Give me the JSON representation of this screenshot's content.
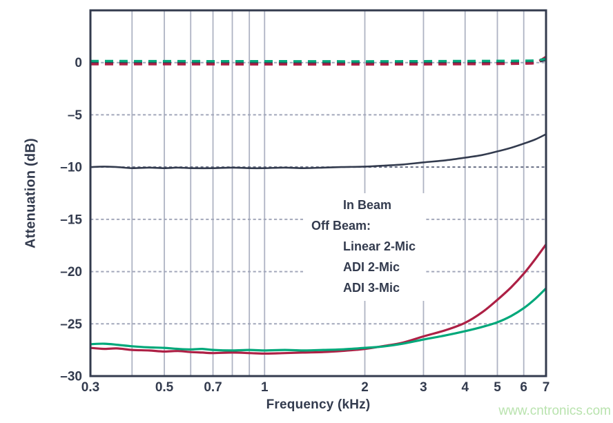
{
  "page": {
    "background": "#ffffff",
    "watermark": "www.cntronics.com",
    "watermark_color": "#b9e3ae"
  },
  "axes": {
    "x_label": "Frequency (kHz)",
    "y_label": "Attenuation (dB)"
  },
  "legend": {
    "rows": [
      {
        "label": "In Beam",
        "swatch": "dashed-navy"
      },
      {
        "label": "Off Beam:",
        "swatch": "none"
      },
      {
        "label": "Linear 2-Mic",
        "swatch": "solid-navy"
      },
      {
        "label": "ADI 2-Mic",
        "swatch": "solid-red"
      },
      {
        "label": "ADI 3-Mic",
        "swatch": "solid-green"
      }
    ]
  },
  "chart_data": {
    "type": "line",
    "title": "",
    "xlabel": "Frequency (kHz)",
    "ylabel": "Attenuation (dB)",
    "x_scale": "log",
    "xlim": [
      0.3,
      7
    ],
    "ylim": [
      -30,
      5
    ],
    "grid": true,
    "legend_position": "center-right-lower",
    "colors": {
      "navy": "#333b4e",
      "red": "#ad2045",
      "green": "#00a87a",
      "gridline": "#aeb3c3",
      "h_dash": "#a2a7ba",
      "ref_dotted": "#666d83",
      "frame": "#333b4e",
      "tick_text": "#333b4e"
    },
    "x_ticks": [
      {
        "value": 0.3,
        "label": "0.3"
      },
      {
        "value": 0.5,
        "label": "0.5"
      },
      {
        "value": 0.7,
        "label": "0.7"
      },
      {
        "value": 1,
        "label": "1"
      },
      {
        "value": 2,
        "label": "2"
      },
      {
        "value": 3,
        "label": "3"
      },
      {
        "value": 4,
        "label": "4"
      },
      {
        "value": 5,
        "label": "5"
      },
      {
        "value": 6,
        "label": "6"
      },
      {
        "value": 7,
        "label": "7"
      }
    ],
    "x_gridlines": [
      0.4,
      0.5,
      0.6,
      0.7,
      0.8,
      0.9,
      1,
      2,
      3,
      4,
      5,
      6
    ],
    "y_ticks": [
      {
        "value": 0,
        "label": "0"
      },
      {
        "value": -5,
        "label": "–5"
      },
      {
        "value": -10,
        "label": "–10"
      },
      {
        "value": -15,
        "label": "–15"
      },
      {
        "value": -20,
        "label": "–20"
      },
      {
        "value": -25,
        "label": "–25"
      },
      {
        "value": -30,
        "label": "–30"
      }
    ],
    "y_gridlines_dashed": [
      0,
      -5,
      -15,
      -20,
      -25
    ],
    "y_reference_dotted": -10,
    "series": [
      {
        "name": "In Beam Linear 2-Mic",
        "style": "dashed",
        "color": "#333b4e",
        "width": 3.4,
        "points": [
          [
            0.3,
            -0.02
          ],
          [
            1,
            -0.02
          ],
          [
            3,
            -0.02
          ],
          [
            5,
            -0.02
          ],
          [
            6,
            0.0
          ],
          [
            6.5,
            0.05
          ],
          [
            7,
            0.25
          ]
        ]
      },
      {
        "name": "In Beam ADI 2-Mic",
        "style": "dashed",
        "color": "#ad2045",
        "width": 3.4,
        "points": [
          [
            0.3,
            -0.15
          ],
          [
            1,
            -0.17
          ],
          [
            2,
            -0.18
          ],
          [
            4,
            -0.15
          ],
          [
            6,
            -0.1
          ],
          [
            6.5,
            0.0
          ],
          [
            7,
            0.55
          ]
        ]
      },
      {
        "name": "In Beam ADI 3-Mic",
        "style": "dashed",
        "color": "#00a87a",
        "width": 3.4,
        "points": [
          [
            0.3,
            0.15
          ],
          [
            1,
            0.13
          ],
          [
            2,
            0.12
          ],
          [
            4,
            0.15
          ],
          [
            6,
            0.18
          ],
          [
            6.5,
            0.22
          ],
          [
            7,
            0.35
          ]
        ]
      },
      {
        "name": "Off Beam Linear 2-Mic",
        "style": "solid",
        "color": "#333b4e",
        "width": 2.6,
        "points": [
          [
            0.3,
            -10.0
          ],
          [
            0.33,
            -9.95
          ],
          [
            0.36,
            -10.0
          ],
          [
            0.4,
            -10.1
          ],
          [
            0.45,
            -10.05
          ],
          [
            0.5,
            -10.1
          ],
          [
            0.55,
            -10.05
          ],
          [
            0.6,
            -10.1
          ],
          [
            0.7,
            -10.1
          ],
          [
            0.8,
            -10.05
          ],
          [
            0.9,
            -10.1
          ],
          [
            1.0,
            -10.1
          ],
          [
            1.15,
            -10.05
          ],
          [
            1.3,
            -10.1
          ],
          [
            1.5,
            -10.05
          ],
          [
            1.7,
            -10.0
          ],
          [
            2.0,
            -9.95
          ],
          [
            2.3,
            -9.85
          ],
          [
            2.6,
            -9.75
          ],
          [
            3.0,
            -9.55
          ],
          [
            3.5,
            -9.35
          ],
          [
            4.0,
            -9.1
          ],
          [
            4.5,
            -8.85
          ],
          [
            5.0,
            -8.5
          ],
          [
            5.5,
            -8.15
          ],
          [
            6.0,
            -7.75
          ],
          [
            6.5,
            -7.35
          ],
          [
            7.0,
            -6.85
          ]
        ]
      },
      {
        "name": "Off Beam ADI 2-Mic",
        "style": "solid",
        "color": "#ad2045",
        "width": 3.2,
        "points": [
          [
            0.3,
            -27.3
          ],
          [
            0.33,
            -27.4
          ],
          [
            0.36,
            -27.35
          ],
          [
            0.4,
            -27.5
          ],
          [
            0.45,
            -27.55
          ],
          [
            0.5,
            -27.65
          ],
          [
            0.55,
            -27.6
          ],
          [
            0.6,
            -27.7
          ],
          [
            0.65,
            -27.75
          ],
          [
            0.7,
            -27.8
          ],
          [
            0.8,
            -27.75
          ],
          [
            0.9,
            -27.8
          ],
          [
            1.0,
            -27.85
          ],
          [
            1.15,
            -27.8
          ],
          [
            1.3,
            -27.75
          ],
          [
            1.5,
            -27.7
          ],
          [
            1.7,
            -27.6
          ],
          [
            2.0,
            -27.4
          ],
          [
            2.3,
            -27.1
          ],
          [
            2.6,
            -26.8
          ],
          [
            3.0,
            -26.2
          ],
          [
            3.5,
            -25.6
          ],
          [
            4.0,
            -24.9
          ],
          [
            4.5,
            -23.9
          ],
          [
            5.0,
            -22.7
          ],
          [
            5.5,
            -21.5
          ],
          [
            6.0,
            -20.2
          ],
          [
            6.5,
            -18.8
          ],
          [
            7.0,
            -17.4
          ]
        ]
      },
      {
        "name": "Off Beam ADI 3-Mic",
        "style": "solid",
        "color": "#00a87a",
        "width": 3.2,
        "points": [
          [
            0.3,
            -26.95
          ],
          [
            0.33,
            -26.9
          ],
          [
            0.36,
            -27.0
          ],
          [
            0.4,
            -27.15
          ],
          [
            0.45,
            -27.25
          ],
          [
            0.5,
            -27.3
          ],
          [
            0.55,
            -27.4
          ],
          [
            0.6,
            -27.45
          ],
          [
            0.65,
            -27.4
          ],
          [
            0.7,
            -27.5
          ],
          [
            0.8,
            -27.55
          ],
          [
            0.9,
            -27.5
          ],
          [
            1.0,
            -27.55
          ],
          [
            1.15,
            -27.5
          ],
          [
            1.3,
            -27.55
          ],
          [
            1.5,
            -27.5
          ],
          [
            1.7,
            -27.45
          ],
          [
            2.0,
            -27.3
          ],
          [
            2.3,
            -27.15
          ],
          [
            2.6,
            -26.9
          ],
          [
            3.0,
            -26.5
          ],
          [
            3.5,
            -26.1
          ],
          [
            4.0,
            -25.7
          ],
          [
            4.5,
            -25.3
          ],
          [
            5.0,
            -24.85
          ],
          [
            5.5,
            -24.25
          ],
          [
            6.0,
            -23.5
          ],
          [
            6.5,
            -22.6
          ],
          [
            7.0,
            -21.6
          ]
        ]
      }
    ]
  }
}
